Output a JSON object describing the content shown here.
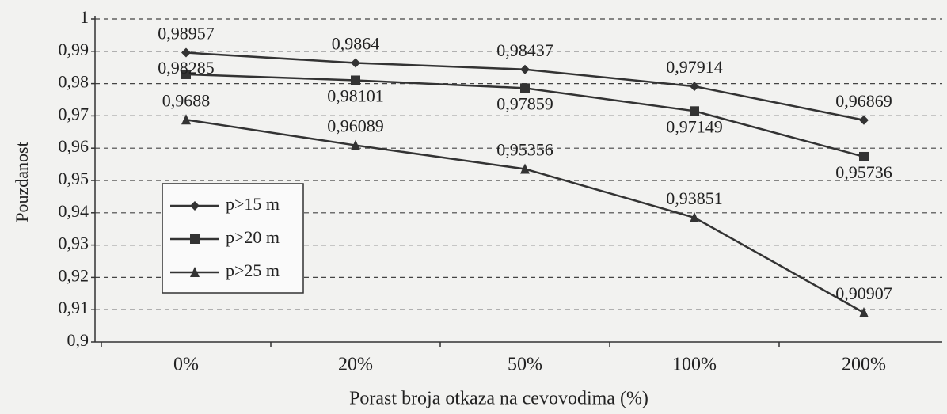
{
  "chart_data": {
    "type": "line",
    "x_label": "Porast broja otkaza na cevovodima (%)",
    "y_label": "Pouzdanost",
    "categories": [
      "0%",
      "20%",
      "50%",
      "100%",
      "200%"
    ],
    "series": [
      {
        "name": "p>15 m",
        "color": "#333333",
        "marker": "diamond",
        "values": [
          0.98957,
          0.9864,
          0.98437,
          0.97914,
          0.96869
        ],
        "value_labels": [
          "0,98957",
          "0,9864",
          "0,98437",
          "0,97914",
          "0,96869"
        ]
      },
      {
        "name": "p>20 m",
        "color": "#333333",
        "marker": "square",
        "values": [
          0.98285,
          0.98101,
          0.97859,
          0.97149,
          0.95736
        ],
        "value_labels": [
          "0,98285",
          "0,98101",
          "0,97859",
          "0,97149",
          "0,95736"
        ]
      },
      {
        "name": "p>25 m",
        "color": "#333333",
        "marker": "triangle",
        "values": [
          0.9688,
          0.96089,
          0.95356,
          0.93851,
          0.90907
        ],
        "value_labels": [
          "0,9688",
          "0,96089",
          "0,95356",
          "0,93851",
          "0,90907"
        ]
      }
    ],
    "ylim": [
      0.9,
      1
    ],
    "yticks": [
      {
        "value": 0.9,
        "label": "0,9"
      },
      {
        "value": 0.91,
        "label": "0,91"
      },
      {
        "value": 0.92,
        "label": "0,92"
      },
      {
        "value": 0.93,
        "label": "0,93"
      },
      {
        "value": 0.94,
        "label": "0,94"
      },
      {
        "value": 0.95,
        "label": "0,95"
      },
      {
        "value": 0.96,
        "label": "0,96"
      },
      {
        "value": 0.97,
        "label": "0,97"
      },
      {
        "value": 0.98,
        "label": "0,98"
      },
      {
        "value": 0.99,
        "label": "0,99"
      },
      1
    ],
    "grid": true,
    "legend": "left"
  }
}
